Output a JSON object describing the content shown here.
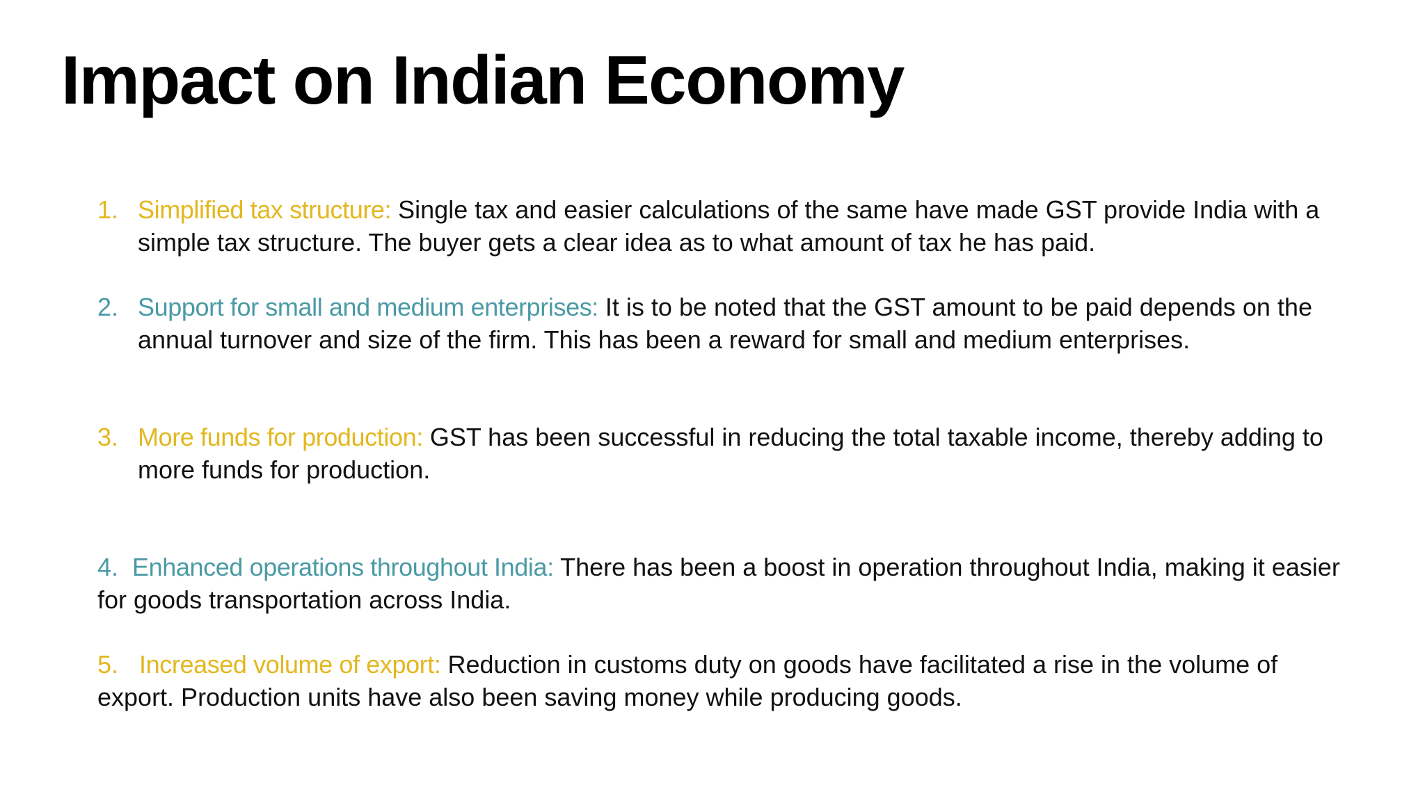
{
  "slide": {
    "title": "Impact on Indian Economy",
    "colors": {
      "gold": "#E3B71F",
      "teal": "#4A9AA5",
      "text": "#111111",
      "title": "#000000",
      "background": "#FFFFFF"
    },
    "items": [
      {
        "number": "1.",
        "heading": "Simplified tax structure:",
        "text": " Single tax and easier calculations of the same have made GST provide India with a simple tax structure. The buyer gets a clear idea as to what amount of tax he has paid.",
        "accent": "gold"
      },
      {
        "number": "2.",
        "heading": "Support for small and medium enterprises:",
        "text": " It is to be noted that the GST amount to be paid depends on the annual turnover and size of the firm. This has been a reward for small and medium enterprises.",
        "accent": "teal"
      },
      {
        "number": "3.",
        "heading": "More funds for production:",
        "text": " GST has been successful in reducing the total taxable income, thereby adding to more funds for production.",
        "accent": "gold"
      },
      {
        "number": "4.",
        "heading": "Enhanced operations throughout India:",
        "text": " There has been a boost in operation throughout  India, making it easier for goods transportation across India.",
        "accent": "teal"
      },
      {
        "number": "5.",
        "heading": "Increased volume of export:",
        "text": " Reduction in customs duty on goods have facilitated a rise in the volume of export. Production units have also been saving money while producing goods.",
        "accent": "gold"
      }
    ]
  }
}
